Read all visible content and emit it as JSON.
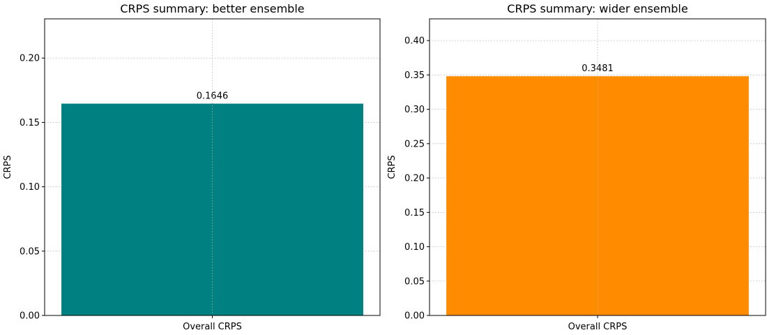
{
  "chart_data": [
    {
      "type": "bar",
      "title": "CRPS summary: better ensemble",
      "xlabel": "",
      "ylabel": "CRPS",
      "categories": [
        "Overall CRPS"
      ],
      "values": [
        0.1646
      ],
      "data_labels": [
        "0.1646"
      ],
      "ylim": [
        0,
        0.2305
      ],
      "yticks": [
        "0.00",
        "0.05",
        "0.10",
        "0.15",
        "0.20"
      ],
      "color": "#008080",
      "grid": true
    },
    {
      "type": "bar",
      "title": "CRPS summary: wider ensemble",
      "xlabel": "",
      "ylabel": "CRPS",
      "categories": [
        "Overall CRPS"
      ],
      "values": [
        0.3481
      ],
      "data_labels": [
        "0.3481"
      ],
      "ylim": [
        0,
        0.4316
      ],
      "yticks": [
        "0.00",
        "0.05",
        "0.10",
        "0.15",
        "0.20",
        "0.25",
        "0.30",
        "0.35",
        "0.40"
      ],
      "color": "#ff8c00",
      "grid": true
    }
  ]
}
